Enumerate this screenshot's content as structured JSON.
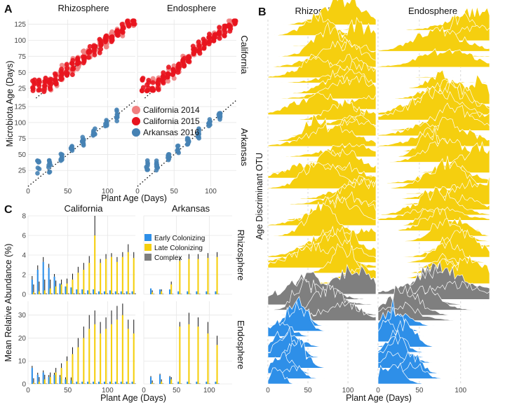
{
  "panel_labels": {
    "a": "A",
    "b": "B",
    "c": "C"
  },
  "colors": {
    "ca2014": "#F08080",
    "ca2015": "#E8141E",
    "ar2016": "#4682B4",
    "early": "#2E8FE8",
    "late": "#F5CF0F",
    "complex": "#7F7F7F"
  },
  "chart_data": [
    {
      "id": "A",
      "type": "scatter",
      "columns": [
        "Rhizosphere",
        "Endosphere"
      ],
      "rows": [
        "California",
        "Arkansas"
      ],
      "xlabel": "Plant Age (Days)",
      "ylabel": "Microbiota Age (Days)",
      "xticks": [
        0,
        50,
        100
      ],
      "xlim": [
        0,
        135
      ],
      "ylim_california": [
        10,
        132
      ],
      "yticks_california": [
        25,
        50,
        75,
        100,
        125
      ],
      "ylim_arkansas": [
        0,
        135
      ],
      "yticks_arkansas": [
        25,
        50,
        75,
        100,
        125
      ],
      "reference_line": "y = x (dotted)",
      "legend": [
        "California 2014",
        "California 2015",
        "Arkansas 2016"
      ],
      "sampling_days": {
        "California 2014": [
          21,
          28,
          35,
          42,
          49,
          56,
          63,
          70,
          77,
          84,
          91,
          98,
          105,
          112,
          119,
          126,
          133
        ],
        "California 2015": [
          7,
          14,
          21,
          28,
          35,
          42,
          49,
          56,
          63,
          70,
          77,
          84,
          91,
          98,
          105,
          112,
          119,
          126,
          133
        ],
        "Arkansas 2016": [
          13,
          27,
          42,
          55,
          69,
          83,
          98,
          112
        ]
      }
    },
    {
      "id": "B",
      "type": "area",
      "subtype": "ridgeline",
      "columns": [
        "Rhizosphere",
        "Endosphere"
      ],
      "xlabel": "Plant Age (Days)",
      "ylabel": "Age Discriminant OTU",
      "xticks": [
        0,
        50,
        100
      ],
      "xlim": [
        0,
        135
      ],
      "groups": [
        {
          "name": "Late Colonizing",
          "rows": 50,
          "peak_day_range": [
            60,
            130
          ]
        },
        {
          "name": "Complex",
          "rows": 7,
          "peak_day_range": [
            20,
            130
          ]
        },
        {
          "name": "Early Colonizing",
          "rows": 12,
          "peak_day_range": [
            5,
            45
          ]
        }
      ]
    },
    {
      "id": "C",
      "type": "bar",
      "columns": [
        "California",
        "Arkansas"
      ],
      "rows": [
        "Rhizosphere",
        "Endosphere"
      ],
      "xlabel": "Plant Age (Days)",
      "ylabel": "Mean Relative Abundance (%)",
      "xticks": [
        0,
        50,
        100
      ],
      "legend": [
        "Early Colonizing",
        "Late Colonizing",
        "Complex"
      ],
      "ylim_rhizosphere": [
        0,
        8
      ],
      "yticks_rhizosphere": [
        0,
        2,
        4,
        6,
        8
      ],
      "ylim_endosphere": [
        0,
        36
      ],
      "yticks_endosphere": [
        0,
        10,
        20,
        30
      ],
      "california_days": [
        7,
        14,
        21,
        28,
        35,
        42,
        49,
        56,
        63,
        70,
        77,
        84,
        91,
        98,
        105,
        112,
        119,
        126,
        133
      ],
      "arkansas_days": [
        13,
        27,
        42,
        55,
        69,
        83,
        98,
        112
      ],
      "series": [
        {
          "panel": "California-Rhizosphere",
          "name": "Early Colonizing",
          "values": [
            1.5,
            2.5,
            3.3,
            2.7,
            1.8,
            1.1,
            0.8,
            0.7,
            0.5,
            0.5,
            0.4,
            0.5,
            0.3,
            0.3,
            0.4,
            0.3,
            0.3,
            0.3,
            0.3
          ]
        },
        {
          "panel": "California-Rhizosphere",
          "name": "Late Colonizing",
          "values": [
            0.2,
            0.3,
            0.4,
            0.6,
            0.8,
            1.0,
            1.1,
            1.5,
            2.2,
            2.5,
            3.2,
            6.0,
            3.2,
            3.6,
            3.8,
            3.3,
            3.8,
            4.3,
            3.7
          ]
        },
        {
          "panel": "California-Rhizosphere",
          "name": "Complex",
          "values": [
            0.1,
            0.1,
            0.1,
            0.1,
            0.1,
            0.1,
            0.1,
            0.1,
            0.1,
            0.1,
            0.1,
            0.1,
            0.1,
            0.1,
            0.1,
            0.1,
            0.1,
            0.1,
            0.1
          ]
        },
        {
          "panel": "California-Endosphere",
          "name": "Early Colonizing",
          "values": [
            7,
            4,
            5,
            3,
            4,
            3,
            2,
            1.5,
            1,
            1,
            1,
            1,
            1,
            1,
            1,
            1,
            1,
            1,
            1
          ]
        },
        {
          "panel": "California-Endosphere",
          "name": "Late Colonizing",
          "values": [
            0.5,
            1,
            2,
            3,
            5,
            7,
            10,
            13,
            16,
            20,
            24,
            26,
            22,
            24,
            26,
            28,
            30,
            24,
            22
          ]
        },
        {
          "panel": "California-Endosphere",
          "name": "Complex",
          "values": [
            0.2,
            0.2,
            0.2,
            0.2,
            0.2,
            0.2,
            0.2,
            0.2,
            0.2,
            0.2,
            0.2,
            0.2,
            0.2,
            0.2,
            0.2,
            0.2,
            0.2,
            0.2,
            0.2
          ]
        },
        {
          "panel": "Arkansas-Rhizosphere",
          "name": "Early Colonizing",
          "values": [
            0.6,
            0.5,
            0.5,
            0.3,
            0.3,
            0.3,
            0.3,
            0.3
          ]
        },
        {
          "panel": "Arkansas-Rhizosphere",
          "name": "Late Colonizing",
          "values": [
            0.2,
            0.3,
            1.0,
            3.4,
            3.6,
            3.6,
            3.7,
            3.8
          ]
        },
        {
          "panel": "Arkansas-Rhizosphere",
          "name": "Complex",
          "values": [
            0.05,
            0.05,
            0.05,
            0.05,
            0.05,
            0.05,
            0.05,
            0.05
          ]
        },
        {
          "panel": "Arkansas-Endosphere",
          "name": "Early Colonizing",
          "values": [
            3,
            4,
            3,
            1,
            1,
            1,
            1,
            1
          ]
        },
        {
          "panel": "Arkansas-Endosphere",
          "name": "Late Colonizing",
          "values": [
            0.5,
            1,
            2,
            25,
            26,
            25,
            22,
            17
          ]
        },
        {
          "panel": "Arkansas-Endosphere",
          "name": "Complex",
          "values": [
            0.2,
            0.2,
            0.2,
            0.2,
            0.2,
            0.2,
            0.2,
            0.2
          ]
        }
      ],
      "error_bar_tops": {
        "California-Rhizosphere": [
          0.8,
          1.0,
          1.1,
          0.9,
          0.6,
          0.5,
          0.5,
          0.6,
          0.6,
          0.7,
          0.7,
          2.0,
          0.4,
          0.5,
          0.4,
          0.5,
          0.5,
          0.8,
          0.6
        ],
        "California-Endosphere": [
          2,
          2,
          2,
          2,
          2,
          2,
          2,
          3,
          4,
          5,
          6,
          6,
          5,
          5,
          6,
          6,
          5,
          4,
          6
        ],
        "Arkansas-Rhizosphere": [
          0.2,
          0.2,
          0.3,
          0.4,
          0.5,
          0.5,
          0.5,
          0.5
        ],
        "Arkansas-Endosphere": [
          1,
          1,
          1,
          2,
          5,
          4,
          5,
          4
        ]
      }
    }
  ]
}
